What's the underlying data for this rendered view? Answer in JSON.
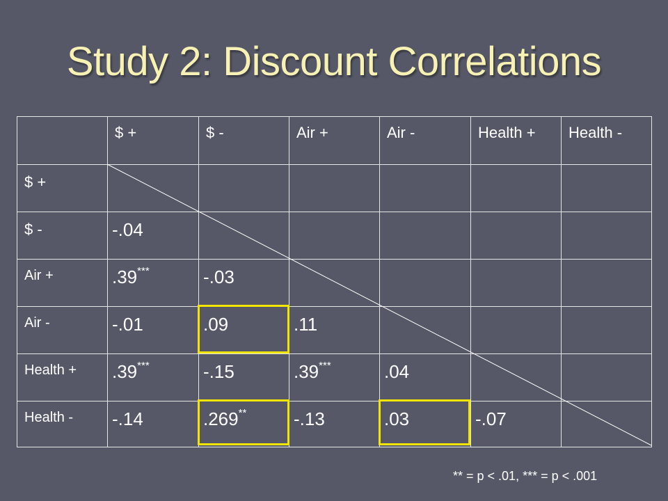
{
  "title": "Study 2: Discount Correlations",
  "columns": [
    "$ +",
    "$ -",
    "Air +",
    "Air -",
    "Health +",
    "Health -"
  ],
  "rows": [
    {
      "label": "$ +",
      "cells": []
    },
    {
      "label": "$ -",
      "cells": [
        {
          "v": "-.04",
          "sig": ""
        }
      ]
    },
    {
      "label": "Air +",
      "cells": [
        {
          "v": ".39",
          "sig": "***"
        },
        {
          "v": "-.03",
          "sig": ""
        }
      ]
    },
    {
      "label": "Air -",
      "cells": [
        {
          "v": "-.01",
          "sig": ""
        },
        {
          "v": ".09",
          "sig": ""
        },
        {
          "v": ".11",
          "sig": ""
        }
      ]
    },
    {
      "label": "Health +",
      "cells": [
        {
          "v": ".39",
          "sig": "***"
        },
        {
          "v": "-.15",
          "sig": ""
        },
        {
          "v": ".39",
          "sig": "***"
        },
        {
          "v": ".04",
          "sig": ""
        }
      ]
    },
    {
      "label": "Health -",
      "cells": [
        {
          "v": "-.14",
          "sig": ""
        },
        {
          "v": ".269",
          "sig": "**"
        },
        {
          "v": "-.13",
          "sig": ""
        },
        {
          "v": ".03",
          "sig": ""
        },
        {
          "v": "-.07",
          "sig": ""
        }
      ]
    }
  ],
  "highlighted": [
    "Air - / $ -",
    "Health - / $ -",
    "Health - / Air -"
  ],
  "footnote": "** = p < .01, *** = p < .001",
  "colors": {
    "background": "#565867",
    "title": "#f7f2b4",
    "highlight": "#f2e600",
    "grid": "#e6e6e6"
  }
}
